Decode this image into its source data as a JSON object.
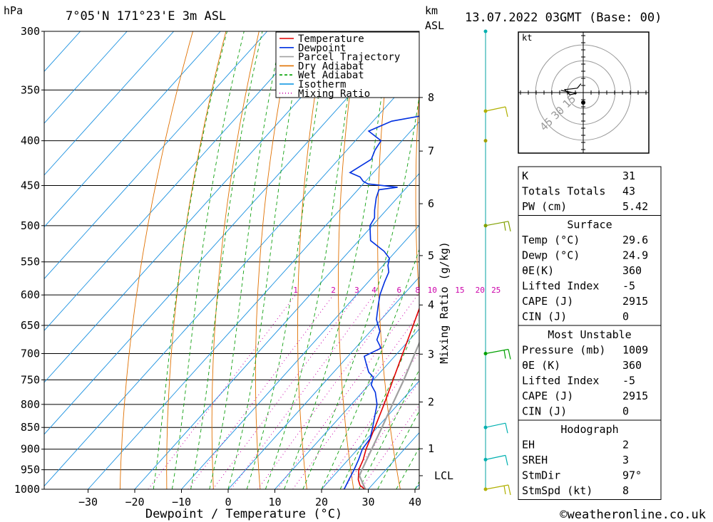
{
  "header": {
    "unit_left": "hPa",
    "location": "7°05'N  171°23'E  3m  ASL",
    "unit_right_1": "km",
    "unit_right_2": "ASL",
    "datetime": "13.07.2022  03GMT  (Base: 00)"
  },
  "footer": {
    "credit": "©weatheronline.co.uk"
  },
  "axes": {
    "xlabel": "Dewpoint / Temperature (°C)",
    "mixing_ratio_label": "Mixing Ratio (g/kg)",
    "lcl_label": "LCL"
  },
  "legend": {
    "items": [
      {
        "label": "Temperature",
        "color": "#e00000",
        "dash": "solid"
      },
      {
        "label": "Dewpoint",
        "color": "#0030e0",
        "dash": "solid"
      },
      {
        "label": "Parcel Trajectory",
        "color": "#a0a0a0",
        "dash": "solid"
      },
      {
        "label": "Dry Adiabat",
        "color": "#e07000",
        "dash": "solid"
      },
      {
        "label": "Wet Adiabat",
        "color": "#00a000",
        "dash": "dashed"
      },
      {
        "label": "Isotherm",
        "color": "#0090e0",
        "dash": "solid"
      },
      {
        "label": "Mixing Ratio",
        "color": "#cc00aa",
        "dash": "dotted"
      }
    ]
  },
  "chart_data": {
    "type": "line",
    "skew_t": true,
    "xlabel": "Dewpoint / Temperature (°C)",
    "ylabel": "hPa",
    "x_ticks": [
      -30,
      -20,
      -10,
      0,
      10,
      20,
      30,
      40
    ],
    "p_ticks": [
      300,
      350,
      400,
      450,
      500,
      550,
      600,
      650,
      700,
      750,
      800,
      850,
      900,
      950,
      1000
    ],
    "km_ticks": [
      {
        "label": "1",
        "p": 899
      },
      {
        "label": "2",
        "p": 795
      },
      {
        "label": "3",
        "p": 701
      },
      {
        "label": "4",
        "p": 616
      },
      {
        "label": "5",
        "p": 541
      },
      {
        "label": "6",
        "p": 472
      },
      {
        "label": "7",
        "p": 411
      },
      {
        "label": "8",
        "p": 357
      }
    ],
    "lcl_p": 965,
    "mixing_ratio_values": [
      1,
      2,
      3,
      4,
      6,
      8,
      10,
      15,
      20,
      25
    ],
    "series": [
      {
        "name": "Temperature",
        "color": "#e00000",
        "points": [
          [
            1002,
            29.6
          ],
          [
            990,
            27.5
          ],
          [
            975,
            26.0
          ],
          [
            950,
            24.2
          ],
          [
            925,
            23.2
          ],
          [
            900,
            21.8
          ],
          [
            850,
            19.5
          ],
          [
            800,
            17.0
          ],
          [
            750,
            14.2
          ],
          [
            700,
            11.2
          ],
          [
            650,
            8.0
          ],
          [
            600,
            4.5
          ],
          [
            550,
            0.0
          ],
          [
            500,
            -5.0
          ],
          [
            450,
            -10.2
          ],
          [
            400,
            -16.5
          ],
          [
            375,
            -20.5
          ],
          [
            365,
            -22.0
          ]
        ]
      },
      {
        "name": "Dewpoint",
        "color": "#0030e0",
        "points": [
          [
            1002,
            24.9
          ],
          [
            975,
            24.0
          ],
          [
            950,
            23.2
          ],
          [
            925,
            22.2
          ],
          [
            900,
            21.0
          ],
          [
            875,
            20.6
          ],
          [
            850,
            19.0
          ],
          [
            800,
            15.5
          ],
          [
            775,
            12.8
          ],
          [
            760,
            10.5
          ],
          [
            745,
            9.5
          ],
          [
            735,
            7.5
          ],
          [
            720,
            5.5
          ],
          [
            705,
            3.5
          ],
          [
            690,
            5.5
          ],
          [
            675,
            3.0
          ],
          [
            660,
            2.0
          ],
          [
            640,
            -1.0
          ],
          [
            630,
            -2.0
          ],
          [
            615,
            -3.5
          ],
          [
            600,
            -5.0
          ],
          [
            580,
            -6.5
          ],
          [
            565,
            -7.5
          ],
          [
            555,
            -9.0
          ],
          [
            545,
            -10.0
          ],
          [
            535,
            -12.5
          ],
          [
            520,
            -17.5
          ],
          [
            500,
            -20.5
          ],
          [
            490,
            -21.0
          ],
          [
            480,
            -22.5
          ],
          [
            465,
            -24.5
          ],
          [
            455,
            -25.5
          ],
          [
            452,
            -22.0
          ],
          [
            448,
            -29.0
          ],
          [
            445,
            -30.5
          ],
          [
            440,
            -32.0
          ],
          [
            435,
            -35.0
          ],
          [
            420,
            -33.0
          ],
          [
            410,
            -34.0
          ],
          [
            400,
            -34.5
          ],
          [
            390,
            -39.0
          ],
          [
            380,
            -36.0
          ],
          [
            370,
            -26.0
          ],
          [
            365,
            -26.0
          ],
          [
            360,
            -32.0
          ],
          [
            350,
            -35.5
          ],
          [
            345,
            -42.5
          ],
          [
            330,
            -53.0
          ]
        ]
      },
      {
        "name": "Parcel Trajectory",
        "color": "#a0a0a0",
        "points": [
          [
            1002,
            29.6
          ],
          [
            965,
            25.5
          ],
          [
            950,
            24.9
          ],
          [
            900,
            23.0
          ],
          [
            850,
            21.0
          ],
          [
            800,
            18.8
          ],
          [
            750,
            16.5
          ],
          [
            700,
            13.8
          ],
          [
            650,
            10.9
          ],
          [
            600,
            7.6
          ],
          [
            550,
            3.8
          ],
          [
            500,
            -0.7
          ],
          [
            450,
            -5.9
          ],
          [
            400,
            -12.0
          ],
          [
            370,
            -16.2
          ]
        ]
      }
    ]
  },
  "hodograph": {
    "unit": "kt",
    "ring_labels": [
      "15",
      "30",
      "45"
    ],
    "points": [
      [
        -0.3,
        -1.2
      ],
      [
        -0.8,
        -0.6
      ],
      [
        -1.6,
        -0.5
      ],
      [
        -2.5,
        -0.4
      ],
      [
        -1.8,
        0.3
      ],
      [
        -0.9,
        0.1
      ],
      [
        -3.0,
        -0.3
      ]
    ]
  },
  "wind_barbs": [
    {
      "p": 1000,
      "color": "#b0b000",
      "speed_kt": 10
    },
    {
      "p": 925,
      "color": "#00b0b0",
      "speed_kt": 5
    },
    {
      "p": 850,
      "color": "#00b0b0",
      "speed_kt": 5
    },
    {
      "p": 700,
      "color": "#00a000",
      "speed_kt": 10
    },
    {
      "p": 500,
      "color": "#80a000",
      "speed_kt": 10
    },
    {
      "p": 400,
      "color": "#a0a000",
      "speed_kt": 0
    },
    {
      "p": 370,
      "color": "#b0b000",
      "speed_kt": 5
    },
    {
      "p": 300,
      "color": "#00b0b0",
      "speed_kt": 0
    }
  ],
  "tables": {
    "indices": [
      {
        "label": "K",
        "value": "31"
      },
      {
        "label": "Totals Totals",
        "value": "43"
      },
      {
        "label": "PW (cm)",
        "value": "5.42"
      }
    ],
    "surface": {
      "title": "Surface",
      "rows": [
        {
          "label": "Temp (°C)",
          "value": "29.6"
        },
        {
          "label": "Dewp (°C)",
          "value": "24.9"
        },
        {
          "label": "θE(K)",
          "value": "360"
        },
        {
          "label": "Lifted Index",
          "value": "-5"
        },
        {
          "label": "CAPE (J)",
          "value": "2915"
        },
        {
          "label": "CIN (J)",
          "value": "0"
        }
      ]
    },
    "most_unstable": {
      "title": "Most Unstable",
      "rows": [
        {
          "label": "Pressure (mb)",
          "value": "1009"
        },
        {
          "label": "θE (K)",
          "value": "360"
        },
        {
          "label": "Lifted Index",
          "value": "-5"
        },
        {
          "label": "CAPE (J)",
          "value": "2915"
        },
        {
          "label": "CIN (J)",
          "value": "0"
        }
      ]
    },
    "hodograph": {
      "title": "Hodograph",
      "rows": [
        {
          "label": "EH",
          "value": "2"
        },
        {
          "label": "SREH",
          "value": "3"
        },
        {
          "label": "StmDir",
          "value": "97°"
        },
        {
          "label": "StmSpd (kt)",
          "value": "8"
        }
      ]
    }
  }
}
